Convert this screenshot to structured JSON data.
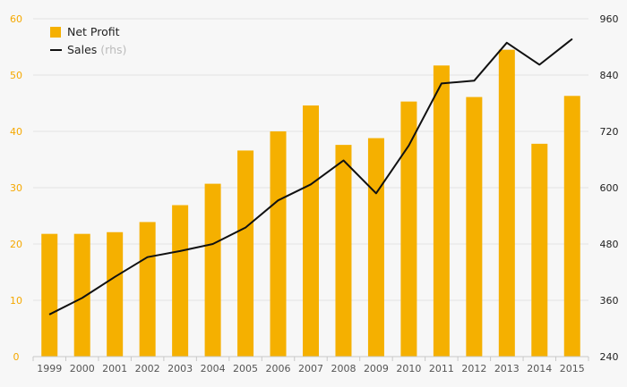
{
  "chart_data": {
    "type": "bar+line",
    "categories": [
      "1999",
      "2000",
      "2001",
      "2002",
      "2003",
      "2004",
      "2005",
      "2006",
      "2007",
      "2008",
      "2009",
      "2010",
      "2011",
      "2012",
      "2013",
      "2014",
      "2015"
    ],
    "series": [
      {
        "name": "Net Profit",
        "type": "bar",
        "axis": "left",
        "color": "#f5b000",
        "values": [
          21.8,
          21.8,
          22.1,
          23.9,
          26.9,
          30.7,
          36.6,
          40.0,
          44.6,
          37.6,
          38.8,
          45.3,
          51.7,
          46.1,
          54.5,
          37.8,
          46.3
        ]
      },
      {
        "name": "Sales",
        "name_note": "(rhs)",
        "type": "line",
        "axis": "right",
        "color": "#111111",
        "values": [
          330,
          365,
          410,
          452,
          465,
          480,
          515,
          573,
          607,
          658,
          588,
          690,
          822,
          828,
          909,
          862,
          917
        ]
      }
    ],
    "y_left": {
      "min": 0,
      "max": 60,
      "ticks": [
        "0",
        "10",
        "20",
        "30",
        "40",
        "50",
        "60"
      ]
    },
    "y_right": {
      "min": 240,
      "max": 960,
      "ticks": [
        "240",
        "360",
        "480",
        "600",
        "720",
        "840",
        "960"
      ]
    },
    "grid": true,
    "legend_position": "top-left",
    "title": "",
    "xlabel": "",
    "ylabel": ""
  }
}
